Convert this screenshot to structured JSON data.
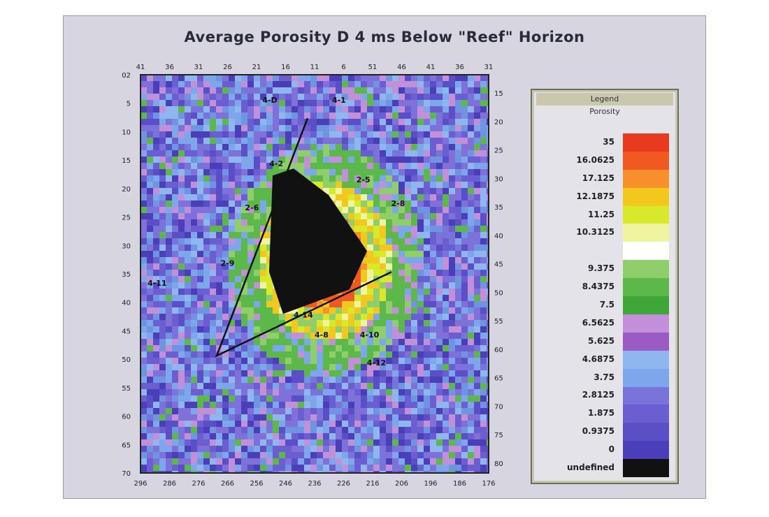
{
  "chart_data": {
    "type": "heatmap",
    "title": "Average Porosity D  4 ms Below \"Reef\" Horizon",
    "x_ticks_top": [
      "41",
      "36",
      "31",
      "26",
      "21",
      "16",
      "11",
      "6",
      "51",
      "46",
      "41",
      "36",
      "31"
    ],
    "x_ticks_bottom": [
      "296",
      "286",
      "276",
      "266",
      "256",
      "246",
      "236",
      "226",
      "216",
      "206",
      "196",
      "186",
      "176"
    ],
    "y_ticks_left": [
      "02",
      "5",
      "10",
      "15",
      "20",
      "25",
      "30",
      "35",
      "40",
      "45",
      "50",
      "55",
      "60",
      "65",
      "70"
    ],
    "y_ticks_right": [
      "15",
      "20",
      "25",
      "30",
      "35",
      "40",
      "45",
      "50",
      "55",
      "60",
      "65",
      "70",
      "75",
      "80"
    ],
    "well_labels": [
      "4-D",
      "4-1",
      "4-2",
      "2-5",
      "2-6",
      "2-8",
      "2-9",
      "4-11",
      "4-8",
      "4-10",
      "4-12",
      "4-14"
    ],
    "legend": {
      "title": "Legend",
      "subtitle": "Porosity",
      "bands": [
        {
          "label": "35",
          "color": "#e83a1e"
        },
        {
          "label": "16.0625",
          "color": "#f05a22"
        },
        {
          "label": "17.125",
          "color": "#f7902a"
        },
        {
          "label": "12.1875",
          "color": "#f2c81e"
        },
        {
          "label": "11.25",
          "color": "#d8e82a"
        },
        {
          "label": "10.3125",
          "color": "#eef4a0"
        },
        {
          "label": "",
          "color": "#ffffff"
        },
        {
          "label": "9.375",
          "color": "#8fce6a"
        },
        {
          "label": "8.4375",
          "color": "#5cb84a"
        },
        {
          "label": "7.5",
          "color": "#3fa63a"
        },
        {
          "label": "6.5625",
          "color": "#c290d8"
        },
        {
          "label": "5.625",
          "color": "#9a5bc4"
        },
        {
          "label": "4.6875",
          "color": "#8fb6ef"
        },
        {
          "label": "3.75",
          "color": "#7ea6ea"
        },
        {
          "label": "2.8125",
          "color": "#7a73da"
        },
        {
          "label": "1.875",
          "color": "#6a5ed0"
        },
        {
          "label": "0.9375",
          "color": "#5a4fc6"
        },
        {
          "label": "0",
          "color": "#4a3fb8"
        },
        {
          "label": "undefined",
          "color": "#111111"
        }
      ]
    }
  }
}
